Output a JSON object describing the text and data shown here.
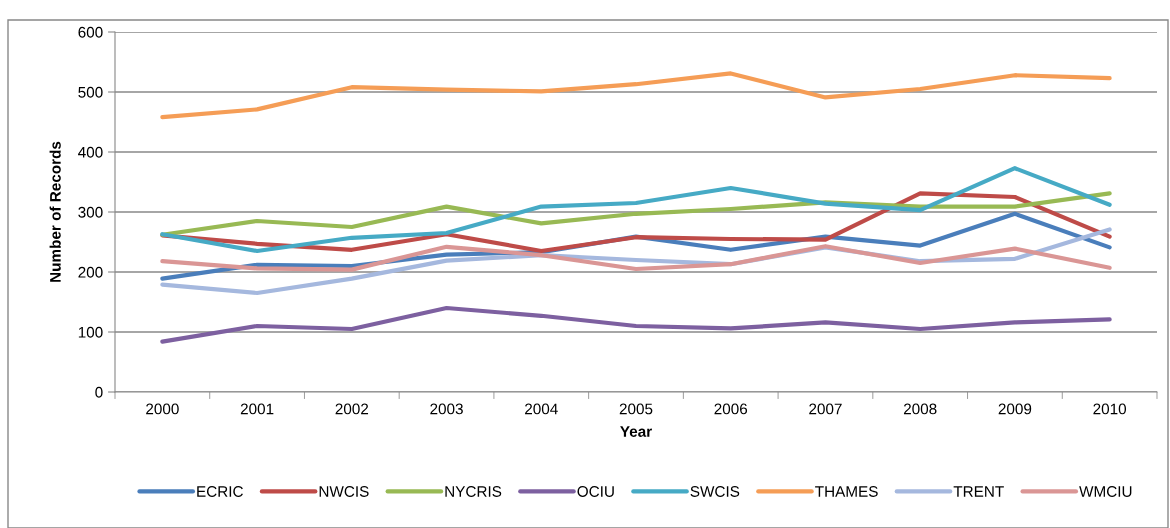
{
  "chart_data": {
    "type": "line",
    "xlabel": "Year",
    "ylabel": "Number of Records",
    "categories": [
      "2000",
      "2001",
      "2002",
      "2003",
      "2004",
      "2005",
      "2006",
      "2007",
      "2008",
      "2009",
      "2010"
    ],
    "ylim": [
      0,
      600
    ],
    "yticks": [
      0,
      100,
      200,
      300,
      400,
      500,
      600
    ],
    "grid": "y",
    "legend": "bottom",
    "marker": "none",
    "line_style": "solid",
    "series": [
      {
        "name": "ECRIC",
        "color": "#4a7ebb",
        "values": [
          189,
          212,
          210,
          229,
          233,
          259,
          237,
          259,
          244,
          297,
          241
        ]
      },
      {
        "name": "NWCIS",
        "color": "#be4b48",
        "values": [
          261,
          247,
          237,
          263,
          235,
          258,
          255,
          254,
          331,
          325,
          259
        ]
      },
      {
        "name": "NYCRIS",
        "color": "#98b954",
        "values": [
          262,
          285,
          275,
          309,
          281,
          297,
          305,
          316,
          309,
          309,
          331
        ]
      },
      {
        "name": "OCIU",
        "color": "#7d60a0",
        "values": [
          84,
          110,
          105,
          140,
          127,
          110,
          106,
          116,
          105,
          116,
          121
        ]
      },
      {
        "name": "SWCIS",
        "color": "#46aac5",
        "values": [
          263,
          235,
          257,
          265,
          309,
          315,
          340,
          314,
          303,
          373,
          312
        ]
      },
      {
        "name": "THAMES",
        "color": "#f59d56",
        "values": [
          458,
          471,
          508,
          504,
          501,
          513,
          531,
          491,
          505,
          528,
          523
        ]
      },
      {
        "name": "TRENT",
        "color": "#a5b8de",
        "values": [
          179,
          165,
          189,
          219,
          228,
          220,
          213,
          241,
          218,
          222,
          271
        ]
      },
      {
        "name": "WMCIU",
        "color": "#da9695",
        "values": [
          218,
          206,
          204,
          242,
          228,
          205,
          213,
          243,
          215,
          239,
          207
        ]
      }
    ]
  }
}
